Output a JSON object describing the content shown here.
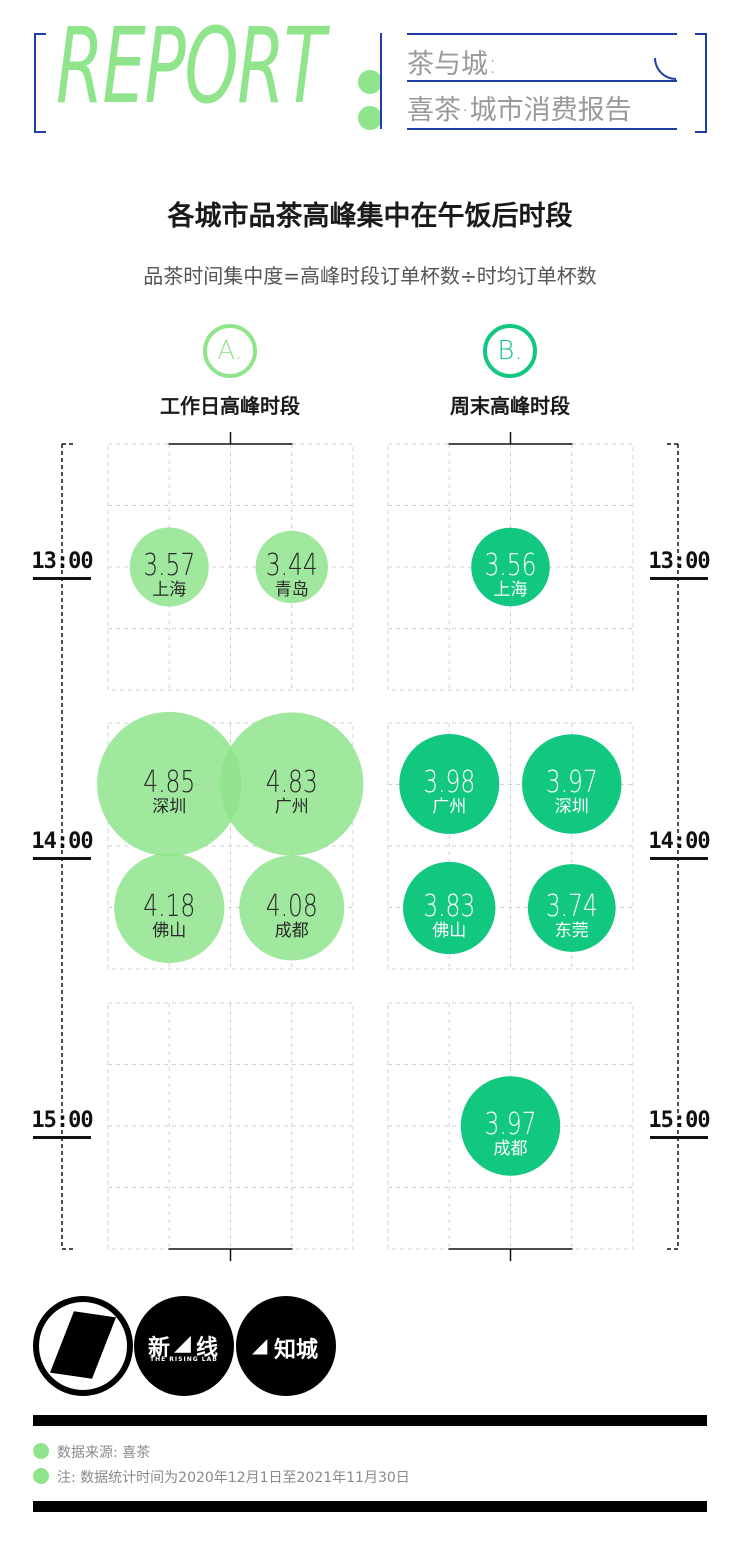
{
  "header": {
    "report_word": "REPORT",
    "line1": "茶与城:",
    "line2": "喜茶·城市消费报告"
  },
  "title": "各城市品茶高峰集中在午饭后时段",
  "subtitle": "品茶时间集中度=高峰时段订单杯数÷时均订单杯数",
  "panels": [
    {
      "badge": "A.",
      "label": "工作日高峰时段"
    },
    {
      "badge": "B.",
      "label": "周末高峰时段"
    }
  ],
  "time_labels": [
    "13:00",
    "14:00",
    "15:00"
  ],
  "colors": {
    "weekday": "#8fe48c",
    "weekend": "#12c780",
    "frame": "#1f3fa8"
  },
  "chart_data": [
    {
      "type": "scatter",
      "name": "工作日高峰时段",
      "points": [
        {
          "city": "上海",
          "value": 3.57,
          "time": "13:00"
        },
        {
          "city": "青岛",
          "value": 3.44,
          "time": "13:00"
        },
        {
          "city": "深圳",
          "value": 4.85,
          "time": "14:00"
        },
        {
          "city": "广州",
          "value": 4.83,
          "time": "14:00"
        },
        {
          "city": "佛山",
          "value": 4.18,
          "time": "14:00"
        },
        {
          "city": "成都",
          "value": 4.08,
          "time": "14:00"
        }
      ]
    },
    {
      "type": "scatter",
      "name": "周末高峰时段",
      "points": [
        {
          "city": "上海",
          "value": 3.56,
          "time": "13:00"
        },
        {
          "city": "广州",
          "value": 3.98,
          "time": "14:00"
        },
        {
          "city": "深圳",
          "value": 3.97,
          "time": "14:00"
        },
        {
          "city": "佛山",
          "value": 3.83,
          "time": "14:00"
        },
        {
          "city": "东莞",
          "value": 3.74,
          "time": "14:00"
        },
        {
          "city": "成都",
          "value": 3.97,
          "time": "15:00"
        }
      ]
    }
  ],
  "logos": [
    {
      "name": "icon-logo",
      "text": ""
    },
    {
      "name": "xinxian-logo",
      "text": "新",
      "text2": "线",
      "sub": "THE RISING LAB"
    },
    {
      "name": "zhicheng-logo",
      "text": "知城"
    }
  ],
  "legend": [
    "数据来源: 喜茶",
    "注: 数据统计时间为2020年12月1日至2021年11月30日"
  ]
}
